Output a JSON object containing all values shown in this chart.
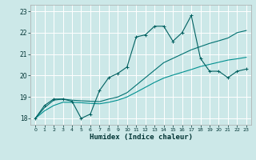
{
  "background_color": "#cce8e8",
  "grid_color": "#ffffff",
  "line_color_1": "#006060",
  "line_color_2": "#007070",
  "line_color_3": "#009090",
  "xlabel": "Humidex (Indice chaleur)",
  "xlim": [
    -0.5,
    23.5
  ],
  "ylim": [
    17.7,
    23.3
  ],
  "yticks": [
    18,
    19,
    20,
    21,
    22,
    23
  ],
  "xticks": [
    0,
    1,
    2,
    3,
    4,
    5,
    6,
    7,
    8,
    9,
    10,
    11,
    12,
    13,
    14,
    15,
    16,
    17,
    18,
    19,
    20,
    21,
    22,
    23
  ],
  "series1_x": [
    0,
    1,
    2,
    3,
    4,
    5,
    6,
    7,
    8,
    9,
    10,
    11,
    12,
    13,
    14,
    15,
    16,
    17,
    18,
    19,
    20,
    21,
    22,
    23
  ],
  "series1_y": [
    18.0,
    18.6,
    18.9,
    18.9,
    18.8,
    18.0,
    18.2,
    19.3,
    19.9,
    20.1,
    20.4,
    21.8,
    21.9,
    22.3,
    22.3,
    21.6,
    22.0,
    22.8,
    20.8,
    20.2,
    20.2,
    19.9,
    20.2,
    20.3
  ],
  "series2_x": [
    0,
    1,
    2,
    3,
    4,
    5,
    6,
    7,
    8,
    9,
    10,
    11,
    12,
    13,
    14,
    15,
    16,
    17,
    18,
    19,
    20,
    21,
    22,
    23
  ],
  "series2_y": [
    18.0,
    18.5,
    18.85,
    18.9,
    18.85,
    18.82,
    18.8,
    18.78,
    18.9,
    19.0,
    19.2,
    19.55,
    19.9,
    20.25,
    20.6,
    20.8,
    21.0,
    21.2,
    21.35,
    21.5,
    21.62,
    21.75,
    22.0,
    22.1
  ],
  "series3_x": [
    0,
    1,
    2,
    3,
    4,
    5,
    6,
    7,
    8,
    9,
    10,
    11,
    12,
    13,
    14,
    15,
    16,
    17,
    18,
    19,
    20,
    21,
    22,
    23
  ],
  "series3_y": [
    18.0,
    18.35,
    18.6,
    18.75,
    18.75,
    18.73,
    18.7,
    18.68,
    18.75,
    18.85,
    19.0,
    19.22,
    19.45,
    19.68,
    19.88,
    20.02,
    20.15,
    20.28,
    20.42,
    20.52,
    20.62,
    20.72,
    20.78,
    20.85
  ]
}
